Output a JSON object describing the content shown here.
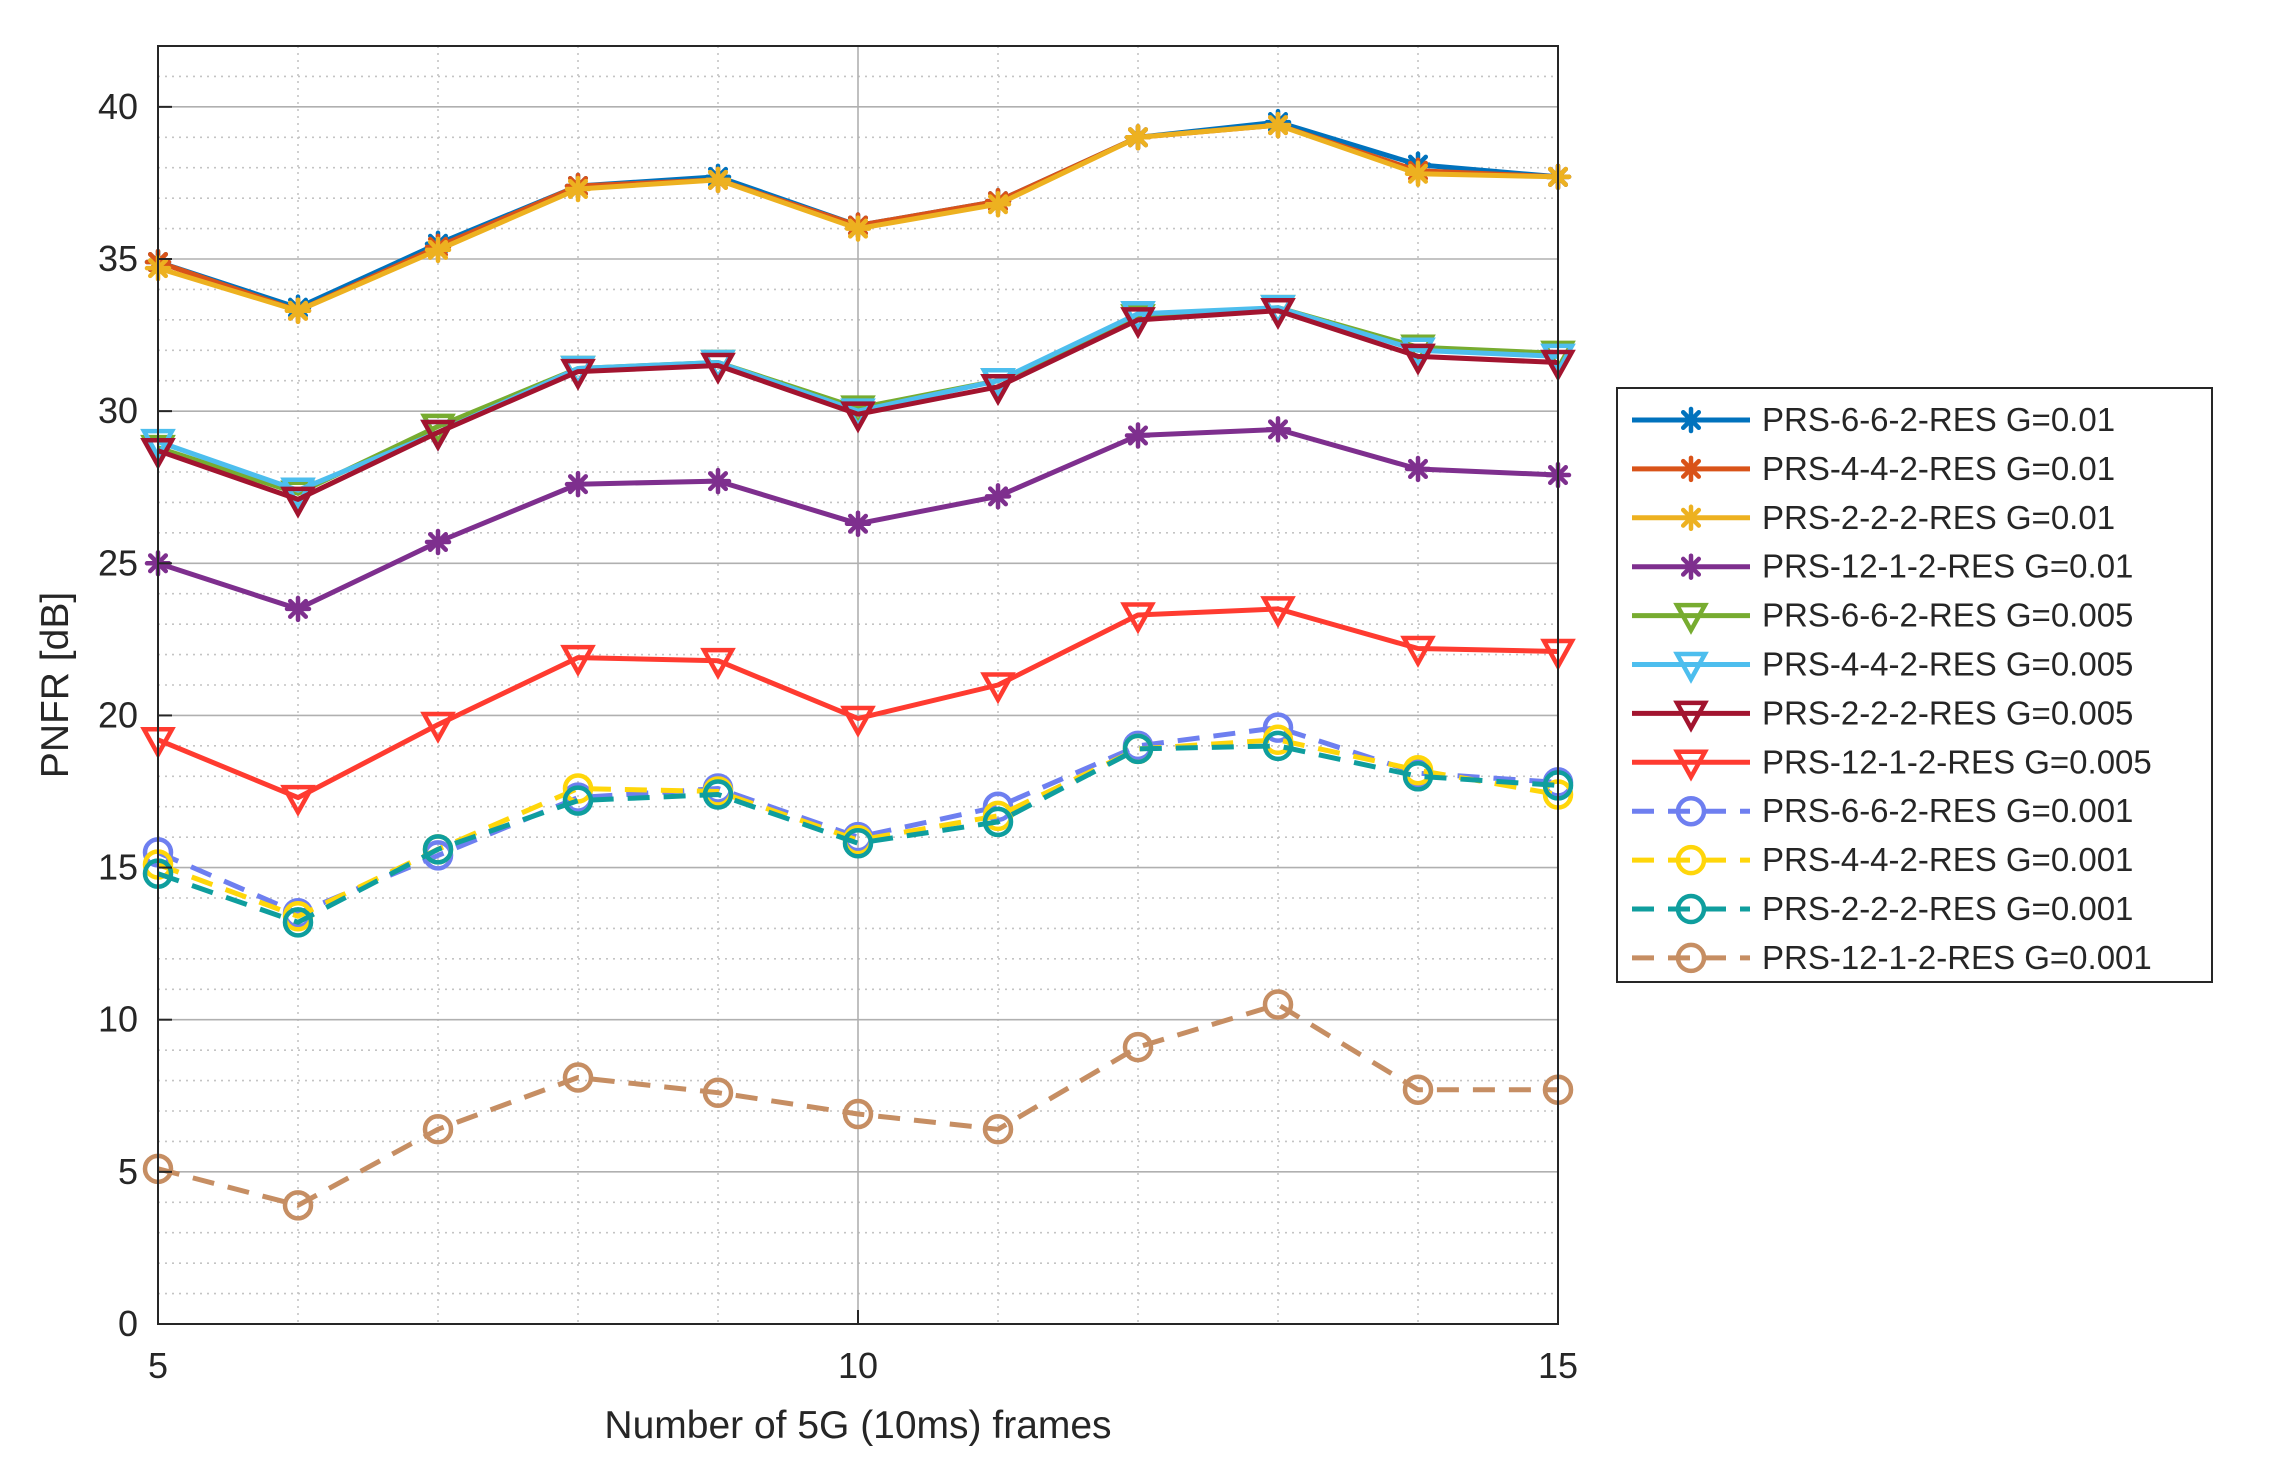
{
  "chart_data": {
    "type": "line",
    "title": "",
    "xlabel": "Number of 5G (10ms) frames",
    "ylabel": "PNFR [dB]",
    "xlim": [
      5,
      15
    ],
    "ylim": [
      0,
      42
    ],
    "xticks": [
      5,
      10,
      15
    ],
    "xtick_labels": [
      "5",
      "10",
      "15"
    ],
    "yticks": [
      0,
      5,
      10,
      15,
      20,
      25,
      30,
      35,
      40
    ],
    "ytick_labels": [
      "0",
      "5",
      "10",
      "15",
      "20",
      "25",
      "30",
      "35",
      "40"
    ],
    "grid": true,
    "minor_grid": true,
    "legend_position": "outside-right",
    "x": [
      5,
      6,
      7,
      8,
      9,
      10,
      11,
      12,
      13,
      14,
      15
    ],
    "series": [
      {
        "name": "PRS-6-6-2-RES G=0.01",
        "color": "#0072BD",
        "marker": "asterisk",
        "dash": "solid",
        "values": [
          34.9,
          33.4,
          35.5,
          37.4,
          37.7,
          36.1,
          36.9,
          39.0,
          39.5,
          38.1,
          37.7
        ]
      },
      {
        "name": "PRS-4-4-2-RES G=0.01",
        "color": "#D95319",
        "marker": "asterisk",
        "dash": "solid",
        "values": [
          34.9,
          33.3,
          35.4,
          37.4,
          37.6,
          36.1,
          36.9,
          39.0,
          39.4,
          37.9,
          37.7
        ]
      },
      {
        "name": "PRS-2-2-2-RES G=0.01",
        "color": "#EDB120",
        "marker": "asterisk",
        "dash": "solid",
        "values": [
          34.7,
          33.3,
          35.3,
          37.3,
          37.6,
          36.0,
          36.8,
          39.0,
          39.4,
          37.8,
          37.7
        ]
      },
      {
        "name": "PRS-12-1-2-RES G=0.01",
        "color": "#7E2F8E",
        "marker": "asterisk",
        "dash": "solid",
        "values": [
          25.0,
          23.5,
          25.7,
          27.6,
          27.7,
          26.3,
          27.2,
          29.2,
          29.4,
          28.1,
          27.9
        ]
      },
      {
        "name": "PRS-6-6-2-RES G=0.005",
        "color": "#77AC30",
        "marker": "triangle-down",
        "dash": "solid",
        "values": [
          28.8,
          27.3,
          29.5,
          31.4,
          31.6,
          30.1,
          31.0,
          33.1,
          33.4,
          32.1,
          31.9
        ]
      },
      {
        "name": "PRS-4-4-2-RES G=0.005",
        "color": "#4DBEEE",
        "marker": "triangle-down",
        "dash": "solid",
        "values": [
          29.0,
          27.4,
          29.3,
          31.4,
          31.6,
          30.0,
          31.0,
          33.2,
          33.4,
          32.0,
          31.8
        ]
      },
      {
        "name": "PRS-2-2-2-RES G=0.005",
        "color": "#A2142F",
        "marker": "triangle-down",
        "dash": "solid",
        "values": [
          28.7,
          27.1,
          29.3,
          31.3,
          31.5,
          29.9,
          30.8,
          33.0,
          33.3,
          31.8,
          31.6
        ]
      },
      {
        "name": "PRS-12-1-2-RES G=0.005",
        "color": "#FF3B30",
        "marker": "triangle-down",
        "dash": "solid",
        "values": [
          19.2,
          17.3,
          19.7,
          21.9,
          21.8,
          19.9,
          21.0,
          23.3,
          23.5,
          22.2,
          22.1
        ]
      },
      {
        "name": "PRS-6-6-2-RES G=0.001",
        "color": "#6E7FF0",
        "marker": "circle",
        "dash": "dashed",
        "values": [
          15.5,
          13.5,
          15.4,
          17.3,
          17.6,
          16.0,
          17.0,
          19.0,
          19.6,
          18.1,
          17.8
        ]
      },
      {
        "name": "PRS-4-4-2-RES G=0.001",
        "color": "#FFD60A",
        "marker": "circle",
        "dash": "dashed",
        "values": [
          15.1,
          13.4,
          15.6,
          17.6,
          17.5,
          15.9,
          16.7,
          18.9,
          19.2,
          18.2,
          17.4
        ]
      },
      {
        "name": "PRS-2-2-2-RES G=0.001",
        "color": "#0F9E9E",
        "marker": "circle",
        "dash": "dashed",
        "values": [
          14.8,
          13.2,
          15.6,
          17.2,
          17.4,
          15.8,
          16.5,
          18.9,
          19.0,
          18.0,
          17.7
        ]
      },
      {
        "name": "PRS-12-1-2-RES G=0.001",
        "color": "#C68E63",
        "marker": "circle",
        "dash": "dashed",
        "values": [
          5.1,
          3.9,
          6.4,
          8.1,
          7.6,
          6.9,
          6.4,
          9.1,
          10.5,
          7.7,
          7.7
        ]
      }
    ]
  }
}
